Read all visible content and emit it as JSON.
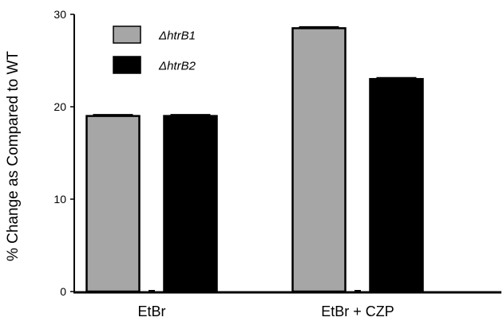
{
  "chart_data": {
    "type": "bar",
    "categories": [
      "EtBr",
      "EtBr + CZP"
    ],
    "series": [
      {
        "name": "ΔhtrB1",
        "values": [
          19.0,
          28.5
        ],
        "color": "#a6a6a6"
      },
      {
        "name": "ΔhtrB2",
        "values": [
          19.0,
          23.0
        ],
        "color": "#000000"
      }
    ],
    "ylabel": "% Change as Compared to WT",
    "xlabel": "",
    "ylim": [
      0,
      30
    ],
    "yticks": [
      "0",
      "10",
      "20",
      "30"
    ],
    "legend_position": "top-left",
    "grid": false,
    "error_bars": true
  }
}
